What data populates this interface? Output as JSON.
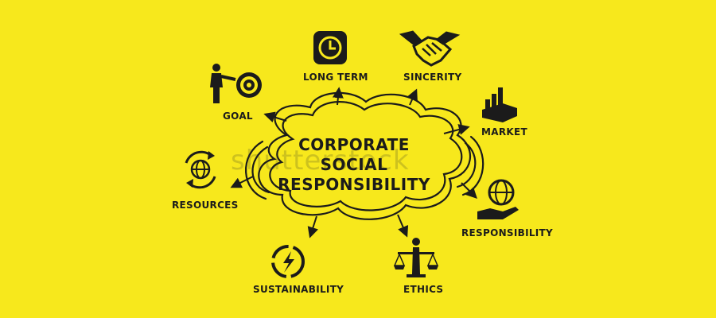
{
  "colors": {
    "background": "#f7e81c",
    "ink": "#1b1b1b"
  },
  "center": {
    "title_lines": [
      "CORPORATE",
      "SOCIAL",
      "RESPONSIBILITY"
    ]
  },
  "watermark": "shutterstock",
  "nodes": {
    "long_term": {
      "label": "LONG TERM",
      "icon": "clock-icon"
    },
    "sincerity": {
      "label": "SINCERITY",
      "icon": "handshake-icon"
    },
    "goal": {
      "label": "GOAL",
      "icon": "target-icon"
    },
    "market": {
      "label": "MARKET",
      "icon": "chart-icon"
    },
    "resources": {
      "label": "RESOURCES",
      "icon": "globe-cycle-icon"
    },
    "responsibility": {
      "label": "RESPONSIBILITY",
      "icon": "globe-hand-icon"
    },
    "sustainability": {
      "label": "SUSTAINABILITY",
      "icon": "recycle-icon"
    },
    "ethics": {
      "label": "ETHICS",
      "icon": "scales-icon"
    }
  }
}
